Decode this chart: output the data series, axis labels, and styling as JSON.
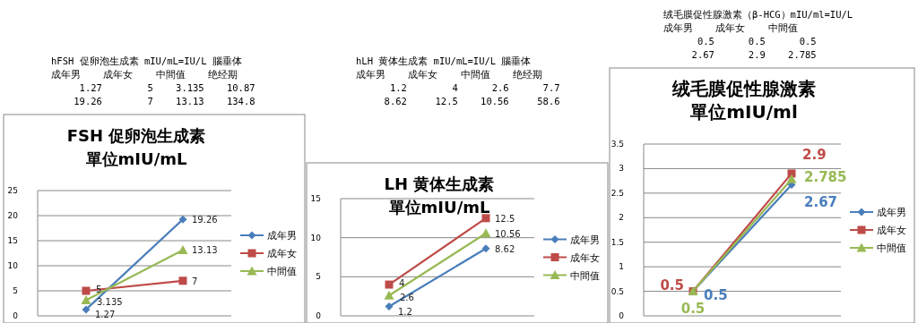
{
  "chart_data": [
    {
      "type": "line",
      "title": "FSH 促卵泡生成素",
      "subtitle": "單位mIU/mL",
      "categories": [
        null,
        null
      ],
      "series": [
        {
          "name": "成年男",
          "color": "#4a7ebb",
          "marker": "diamond",
          "values": [
            1.27,
            19.26
          ]
        },
        {
          "name": "成年女",
          "color": "#be4b48",
          "marker": "square",
          "values": [
            5,
            7
          ]
        },
        {
          "name": "中間值",
          "color": "#98b954",
          "marker": "triangle",
          "values": [
            3.135,
            13.13
          ]
        }
      ],
      "ylim": [
        0,
        25
      ],
      "yticks": [
        0,
        5,
        10,
        15,
        20,
        25
      ],
      "grid": "y",
      "legend": "right",
      "data_labels": true,
      "annotations": [
        "hFSH 促卵泡生成素 mIU/mL=IU/L 腦垂体",
        "成年男    成年女    中間值    绝经期",
        "     1.27        5    3.135    10.87",
        "    19.26        7    13.13    134.8"
      ]
    },
    {
      "type": "line",
      "title": "LH 黄体生成素",
      "subtitle": "單位mIU/mL",
      "categories": [
        null,
        null
      ],
      "series": [
        {
          "name": "成年男",
          "color": "#4a7ebb",
          "marker": "diamond",
          "values": [
            1.2,
            8.62
          ]
        },
        {
          "name": "成年女",
          "color": "#be4b48",
          "marker": "square",
          "values": [
            4,
            12.5
          ]
        },
        {
          "name": "中間值",
          "color": "#98b954",
          "marker": "triangle",
          "values": [
            2.6,
            10.56
          ]
        }
      ],
      "ylim": [
        0,
        15
      ],
      "yticks": [
        0,
        5,
        10,
        15
      ],
      "grid": "y",
      "legend": "right",
      "data_labels": true,
      "annotations": [
        "hLH 黄体生成素 mIU/mL=IU/L 腦垂体",
        "成年男    成年女    中間值    绝经期",
        "      1.2        4      2.6      7.7",
        "     8.62     12.5    10.56     58.6"
      ]
    },
    {
      "type": "line",
      "title": "绒毛膜促性腺激素",
      "subtitle": "單位mIU/ml",
      "categories": [
        null,
        null
      ],
      "series": [
        {
          "name": "成年男",
          "color": "#4a7ebb",
          "marker": "diamond",
          "values": [
            0.5,
            2.67
          ]
        },
        {
          "name": "成年女",
          "color": "#be4b48",
          "marker": "square",
          "values": [
            0.5,
            2.9
          ]
        },
        {
          "name": "中間值",
          "color": "#98b954",
          "marker": "triangle",
          "values": [
            0.5,
            2.785
          ]
        }
      ],
      "ylim": [
        0,
        3.5
      ],
      "yticks": [
        0,
        0.5,
        1,
        1.5,
        2,
        2.5,
        3,
        3.5
      ],
      "grid": "y",
      "legend": "right",
      "data_labels": true,
      "annotations": [
        "绒毛膜促性腺激素（β-HCG）mIU/ml=IU/L",
        "成年男    成年女    中間值",
        "      0.5      0.5      0.5",
        "     2.67      2.9    2.785"
      ]
    }
  ]
}
